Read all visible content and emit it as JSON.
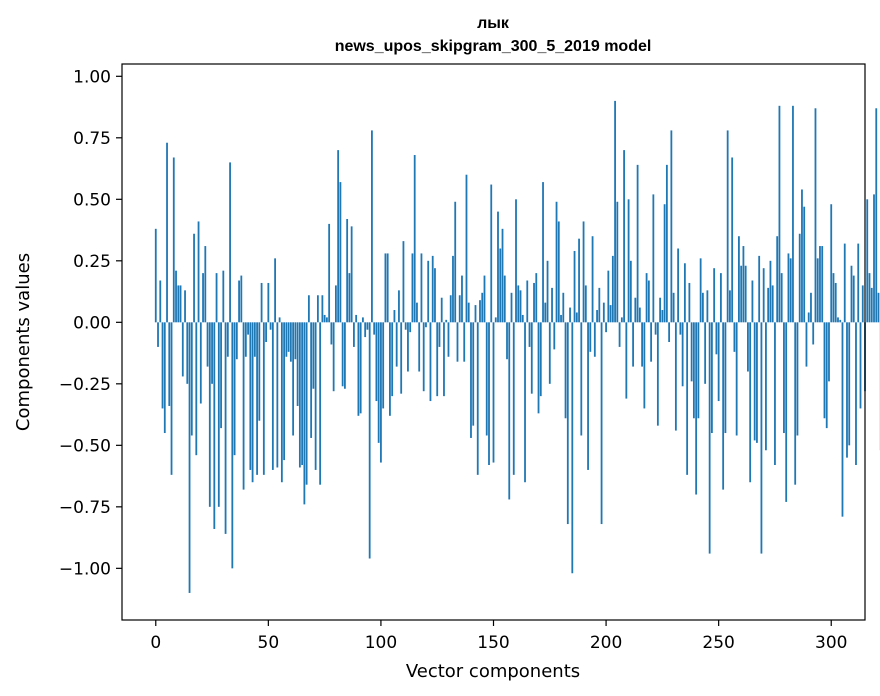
{
  "chart_data": {
    "type": "bar",
    "title": "лык",
    "subtitle": "news_upos_skipgram_300_5_2019 model",
    "xlabel": "Vector components",
    "ylabel": "Components values",
    "xlim": [
      -15,
      315
    ],
    "ylim": [
      -1.21,
      1.05
    ],
    "xticks": [
      0,
      50,
      100,
      150,
      200,
      250,
      300
    ],
    "yticks": [
      1.0,
      0.75,
      0.5,
      0.25,
      0.0,
      -0.25,
      -0.5,
      -0.75,
      -1.0
    ],
    "ytick_labels": [
      "1.00",
      "0.75",
      "0.50",
      "0.25",
      "0.00",
      "−0.25",
      "−0.50",
      "−0.75",
      "−1.00"
    ],
    "xtick_labels": [
      "0",
      "50",
      "100",
      "150",
      "200",
      "250",
      "300"
    ],
    "bar_color": "#1f77b4",
    "values": [
      0.38,
      -0.1,
      0.17,
      -0.35,
      -0.45,
      0.73,
      -0.34,
      -0.62,
      0.67,
      0.21,
      0.15,
      0.15,
      -0.22,
      0.13,
      -0.25,
      -1.1,
      -0.46,
      0.36,
      -0.54,
      0.41,
      -0.33,
      0.2,
      0.31,
      -0.18,
      -0.75,
      -0.25,
      -0.84,
      0.2,
      -0.75,
      -0.43,
      0.21,
      -0.86,
      -0.14,
      0.65,
      -1.0,
      -0.54,
      -0.15,
      0.17,
      0.19,
      -0.68,
      -0.14,
      -0.05,
      -0.6,
      -0.65,
      -0.14,
      -0.62,
      -0.4,
      0.16,
      -0.62,
      -0.08,
      0.16,
      -0.03,
      -0.6,
      0.26,
      -0.59,
      0.02,
      -0.65,
      -0.56,
      -0.14,
      -0.12,
      -0.16,
      -0.46,
      -0.15,
      -0.34,
      -0.59,
      -0.58,
      -0.74,
      -0.66,
      0.11,
      -0.47,
      -0.27,
      -0.6,
      0.11,
      -0.66,
      0.11,
      0.03,
      0.02,
      0.4,
      -0.09,
      -0.28,
      0.15,
      0.7,
      0.57,
      -0.26,
      -0.27,
      0.42,
      0.2,
      0.39,
      -0.1,
      0.03,
      -0.38,
      -0.37,
      0.02,
      -0.06,
      -0.03,
      -0.96,
      0.78,
      -0.05,
      -0.32,
      -0.49,
      -0.57,
      -0.35,
      0.28,
      0.28,
      -0.38,
      -0.3,
      0.05,
      -0.18,
      0.13,
      -0.29,
      0.33,
      -0.03,
      -0.2,
      -0.04,
      0.28,
      0.68,
      0.08,
      -0.2,
      0.28,
      -0.28,
      -0.02,
      0.25,
      -0.32,
      0.27,
      0.22,
      -0.3,
      -0.1,
      0.1,
      -0.3,
      0.01,
      -0.14,
      0.11,
      0.27,
      0.49,
      -0.16,
      0.11,
      0.19,
      -0.16,
      0.6,
      0.08,
      -0.47,
      -0.42,
      0.07,
      -0.62,
      0.09,
      0.12,
      0.19,
      -0.46,
      -0.58,
      0.56,
      -0.57,
      0.02,
      0.45,
      0.3,
      0.38,
      0.19,
      -0.15,
      -0.72,
      0.12,
      -0.62,
      0.5,
      0.15,
      0.13,
      0.03,
      -0.65,
      0.17,
      -0.1,
      -0.29,
      0.16,
      0.2,
      -0.37,
      -0.3,
      0.57,
      0.08,
      0.25,
      -0.25,
      0.14,
      -0.11,
      0.49,
      0.41,
      0.03,
      0.12,
      -0.39,
      -0.82,
      0.06,
      -1.02,
      0.29,
      0.04,
      0.34,
      -0.46,
      0.41,
      0.15,
      -0.6,
      -0.12,
      0.35,
      -0.14,
      0.05,
      0.14,
      -0.82,
      0.08,
      -0.04,
      0.21,
      0.07,
      0.27,
      0.9,
      0.49,
      -0.1,
      0.02,
      0.7,
      -0.31,
      0.5,
      0.25,
      -0.18,
      0.1,
      0.64,
      0.06,
      -0.18,
      -0.35,
      0.2,
      0.17,
      -0.16,
      0.52,
      -0.05,
      -0.42,
      0.1,
      0.05,
      0.48,
      0.64,
      -0.08,
      0.78,
      0.12,
      -0.44,
      0.3,
      -0.05,
      -0.26,
      0.24,
      -0.62,
      0.16,
      -0.24,
      -0.39,
      -0.7,
      -0.39,
      0.26,
      0.12,
      -0.25,
      0.13,
      -0.94,
      -0.45,
      0.22,
      -0.13,
      -0.32,
      0.2,
      -0.68,
      -0.45,
      0.78,
      0.13,
      0.67,
      -0.12,
      -0.46,
      0.35,
      0.23,
      0.31,
      0.23,
      -0.2,
      -0.65,
      0.17,
      -0.48,
      -0.49,
      0.27,
      -0.94,
      0.22,
      -0.52,
      0.14,
      0.25,
      0.15,
      -0.58,
      0.35,
      0.88,
      0.2,
      -0.45,
      -0.73,
      0.28,
      0.26,
      0.88,
      -0.66,
      -0.46,
      0.36,
      0.54,
      0.47,
      -0.18,
      0.04,
      0.12,
      -0.09,
      0.87,
      0.26,
      0.31,
      0.31,
      -0.39,
      -0.43,
      -0.24,
      0.48,
      0.2,
      0.16,
      0.02,
      0.01,
      -0.79,
      0.32,
      -0.55,
      -0.5,
      0.23,
      0.19,
      -0.58,
      0.32,
      -0.35,
      0.15,
      -0.28,
      0.5,
      0.2,
      0.14,
      0.52,
      0.87,
      0.12,
      -0.52,
      0.21,
      0.01,
      0.02,
      -0.58,
      -0.34,
      0.02,
      -0.14,
      0.28,
      0.03,
      -0.35,
      -0.45,
      -0.78,
      0.32,
      -0.43,
      -0.45,
      -0.62,
      0.25,
      -0.23,
      -0.41,
      0.41,
      0.16,
      -0.08,
      0.24,
      0.2,
      0.21,
      0.01,
      0.15,
      -0.12,
      0.66,
      0.86,
      -0.57,
      -0.58,
      0.36,
      0.24,
      -0.53
    ]
  }
}
